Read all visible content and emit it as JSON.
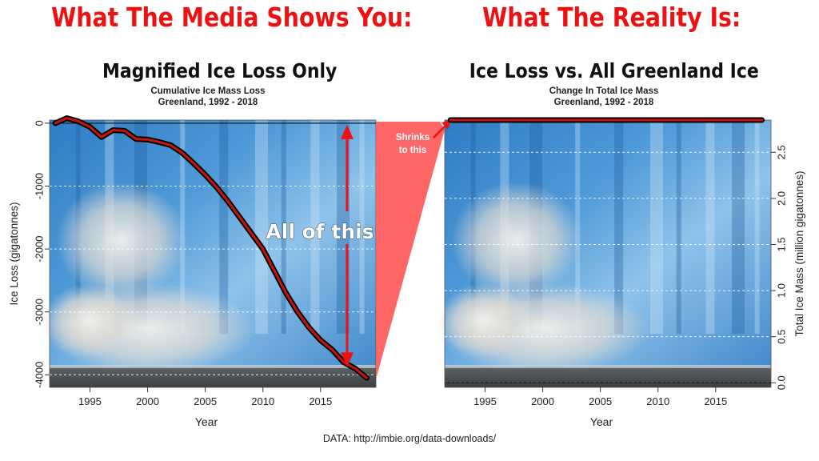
{
  "headline_left": "What The Media Shows You:",
  "headline_right": "What The Reality Is:",
  "left_panel": {
    "subtitle": "Magnified Ice Loss Only",
    "title_line1": "Cumulative Ice Mass Loss",
    "title_line2": "Greenland, 1992 - 2018",
    "annotation": "All of this"
  },
  "right_panel": {
    "subtitle": "Ice Loss vs. All Greenland Ice",
    "title_line1": "Change In Total Ice Mass",
    "title_line2": "Greenland, 1992 - 2018"
  },
  "callout": {
    "line1": "Shrinks",
    "line2": "to this"
  },
  "footer": "DATA: http://imbie.org/data-downloads/",
  "colors": {
    "headline": "#ee1111",
    "line": "#cc1111",
    "arrow": "#ee1111",
    "callout": "#ff5555"
  },
  "chart_data": [
    {
      "type": "line",
      "title": "Cumulative Ice Mass Loss",
      "subtitle": "Greenland, 1992 - 2018",
      "xlabel": "Year",
      "ylabel": "Ice Loss (gigatonnes)",
      "xlim": [
        1991.5,
        2019.8
      ],
      "ylim": [
        -4200,
        50
      ],
      "xticks": [
        1995,
        2000,
        2005,
        2010,
        2015
      ],
      "yticks": [
        0,
        -1000,
        -2000,
        -3000,
        -4000
      ],
      "x": [
        1992.0,
        1993.0,
        1994.0,
        1995.0,
        1996.0,
        1997.0,
        1998.0,
        1999.0,
        2000.0,
        2001.0,
        2002.0,
        2003.0,
        2004.0,
        2005.0,
        2006.0,
        2007.0,
        2008.0,
        2009.0,
        2010.0,
        2011.0,
        2012.0,
        2013.0,
        2014.0,
        2015.0,
        2016.0,
        2017.0,
        2018.0,
        2019.0
      ],
      "y": [
        0,
        80,
        30,
        -60,
        -220,
        -110,
        -120,
        -250,
        -260,
        -300,
        -350,
        -470,
        -640,
        -820,
        -1020,
        -1250,
        -1500,
        -1750,
        -2000,
        -2350,
        -2700,
        -3000,
        -3250,
        -3450,
        -3600,
        -3800,
        -3900,
        -4050
      ],
      "series": [
        {
          "values": [
            0,
            80,
            30,
            -60,
            -220,
            -110,
            -120,
            -250,
            -260,
            -300,
            -350,
            -470,
            -640,
            -820,
            -1020,
            -1250,
            -1500,
            -1750,
            -2000,
            -2350,
            -2700,
            -3000,
            -3250,
            -3450,
            -3600,
            -3800,
            -3900,
            -4050
          ]
        }
      ]
    },
    {
      "type": "line",
      "title": "Change In Total Ice Mass",
      "subtitle": "Greenland, 1992 - 2018",
      "xlabel": "Year",
      "ylabel": "Total Ice Mass (million gigatonnes)",
      "xlim": [
        1991.5,
        2019.8
      ],
      "ylim": [
        -0.05,
        2.85
      ],
      "xticks": [
        1995,
        2000,
        2005,
        2010,
        2015
      ],
      "yticks": [
        0.0,
        0.5,
        1.0,
        1.5,
        2.0,
        2.5
      ],
      "ytick_labels": [
        "0.0",
        "0.5",
        "1.0",
        "1.5",
        "2.0",
        "2.5"
      ],
      "x": [
        1992,
        2019
      ],
      "y": [
        2.85,
        2.85
      ],
      "series": [
        {
          "values": [
            2.85,
            2.85
          ]
        }
      ]
    }
  ]
}
